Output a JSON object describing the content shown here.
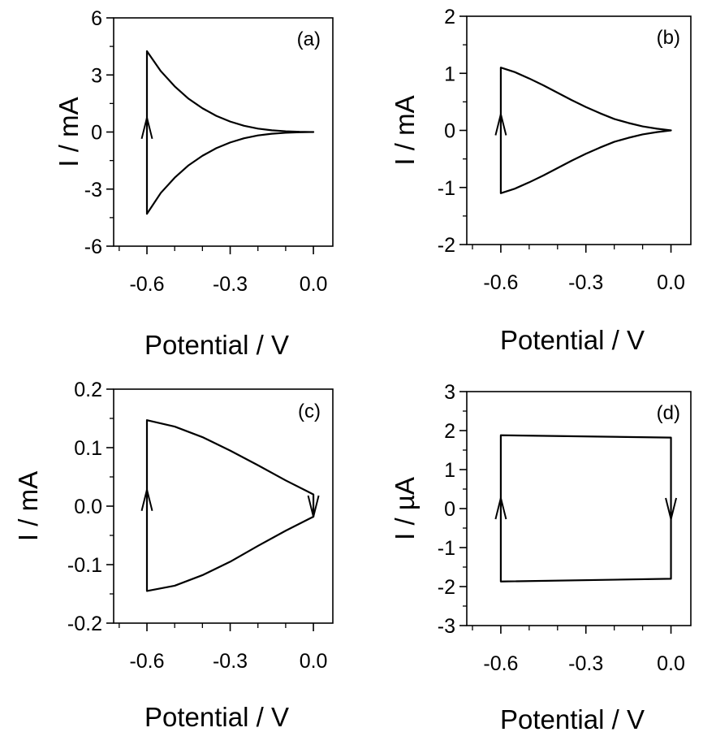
{
  "chart_data": [
    {
      "type": "line",
      "panel_label": "(a)",
      "xlabel": "Potential / V",
      "ylabel": "I / mA",
      "xlim": [
        -0.72,
        0.07
      ],
      "ylim": [
        -6,
        6
      ],
      "xticks": [
        -0.6,
        -0.3,
        0.0
      ],
      "xtick_labels": [
        "-0.6",
        "-0.3",
        "0.0"
      ],
      "yticks": [
        -6,
        -3,
        0,
        3,
        6
      ],
      "ytick_labels": [
        "-6",
        "-3",
        "0",
        "3",
        "6"
      ],
      "series": [
        {
          "x": [
            -0.6,
            -0.6,
            -0.55,
            -0.5,
            -0.45,
            -0.4,
            -0.35,
            -0.3,
            -0.25,
            -0.2,
            -0.15,
            -0.1,
            -0.05,
            0.0,
            -0.05,
            -0.1,
            -0.15,
            -0.2,
            -0.25,
            -0.3,
            -0.35,
            -0.4,
            -0.45,
            -0.5,
            -0.55,
            -0.6,
            -0.6
          ],
          "y": [
            0.0,
            4.25,
            3.2,
            2.4,
            1.75,
            1.25,
            0.85,
            0.55,
            0.33,
            0.18,
            0.09,
            0.04,
            0.01,
            0.0,
            -0.01,
            -0.04,
            -0.09,
            -0.18,
            -0.33,
            -0.55,
            -0.85,
            -1.25,
            -1.75,
            -2.4,
            -3.2,
            -4.3,
            0.0
          ]
        }
      ],
      "arrows": [
        {
          "x": -0.6,
          "y": 0.2,
          "direction": "up"
        }
      ],
      "grid": false
    },
    {
      "type": "line",
      "panel_label": "(b)",
      "xlabel": "Potential / V",
      "ylabel": "I / mA",
      "xlim": [
        -0.72,
        0.07
      ],
      "ylim": [
        -2,
        2
      ],
      "xticks": [
        -0.6,
        -0.3,
        0.0
      ],
      "xtick_labels": [
        "-0.6",
        "-0.3",
        "0.0"
      ],
      "yticks": [
        -2,
        -1,
        0,
        1,
        2
      ],
      "ytick_labels": [
        "-2",
        "-1",
        "0",
        "1",
        "2"
      ],
      "series": [
        {
          "x": [
            -0.6,
            -0.6,
            -0.55,
            -0.5,
            -0.45,
            -0.4,
            -0.35,
            -0.3,
            -0.25,
            -0.2,
            -0.15,
            -0.1,
            -0.05,
            0.0,
            -0.05,
            -0.1,
            -0.15,
            -0.2,
            -0.25,
            -0.3,
            -0.35,
            -0.4,
            -0.45,
            -0.5,
            -0.55,
            -0.6,
            -0.6
          ],
          "y": [
            0.0,
            1.1,
            1.02,
            0.91,
            0.79,
            0.66,
            0.53,
            0.41,
            0.3,
            0.2,
            0.13,
            0.07,
            0.03,
            0.0,
            -0.03,
            -0.07,
            -0.13,
            -0.2,
            -0.3,
            -0.41,
            -0.53,
            -0.66,
            -0.79,
            -0.91,
            -1.02,
            -1.1,
            0.0
          ]
        }
      ],
      "arrows": [
        {
          "x": -0.6,
          "y": 0.1,
          "direction": "up"
        }
      ],
      "grid": false
    },
    {
      "type": "line",
      "panel_label": "(c)",
      "xlabel": "Potential / V",
      "ylabel": "I / mA",
      "xlim": [
        -0.72,
        0.07
      ],
      "ylim": [
        -0.2,
        0.2
      ],
      "xticks": [
        -0.6,
        -0.3,
        0.0
      ],
      "xtick_labels": [
        "-0.6",
        "-0.3",
        "0.0"
      ],
      "yticks": [
        -0.2,
        -0.1,
        0.0,
        0.1,
        0.2
      ],
      "ytick_labels": [
        "-0.2",
        "-0.1",
        "0.0",
        "0.1",
        "0.2"
      ],
      "series": [
        {
          "x": [
            -0.6,
            -0.6,
            -0.5,
            -0.4,
            -0.3,
            -0.2,
            -0.1,
            0.0,
            0.0,
            -0.1,
            -0.2,
            -0.3,
            -0.4,
            -0.5,
            -0.6,
            -0.6
          ],
          "y": [
            0.0,
            0.147,
            0.136,
            0.118,
            0.095,
            0.07,
            0.044,
            0.02,
            -0.018,
            -0.042,
            -0.068,
            -0.095,
            -0.118,
            -0.136,
            -0.145,
            0.0
          ]
        }
      ],
      "arrows": [
        {
          "x": -0.6,
          "y": 0.01,
          "direction": "up"
        },
        {
          "x": 0.0,
          "y": 0.0,
          "direction": "down"
        }
      ],
      "grid": false
    },
    {
      "type": "line",
      "panel_label": "(d)",
      "xlabel": "Potential / V",
      "ylabel": "I / µA",
      "xlim": [
        -0.72,
        0.07
      ],
      "ylim": [
        -3,
        3
      ],
      "xticks": [
        -0.6,
        -0.3,
        0.0
      ],
      "xtick_labels": [
        "-0.6",
        "-0.3",
        "0.0"
      ],
      "yticks": [
        -3,
        -2,
        -1,
        0,
        1,
        2,
        3
      ],
      "ytick_labels": [
        "-3",
        "-2",
        "-1",
        "0",
        "1",
        "2",
        "3"
      ],
      "series": [
        {
          "x": [
            -0.6,
            -0.6,
            0.0,
            0.0,
            -0.6,
            -0.6
          ],
          "y": [
            0.0,
            1.88,
            1.82,
            -1.8,
            -1.87,
            0.0
          ]
        }
      ],
      "arrows": [
        {
          "x": -0.6,
          "y": 0.0,
          "direction": "up"
        },
        {
          "x": 0.0,
          "y": 0.0,
          "direction": "down"
        }
      ],
      "grid": false
    }
  ]
}
